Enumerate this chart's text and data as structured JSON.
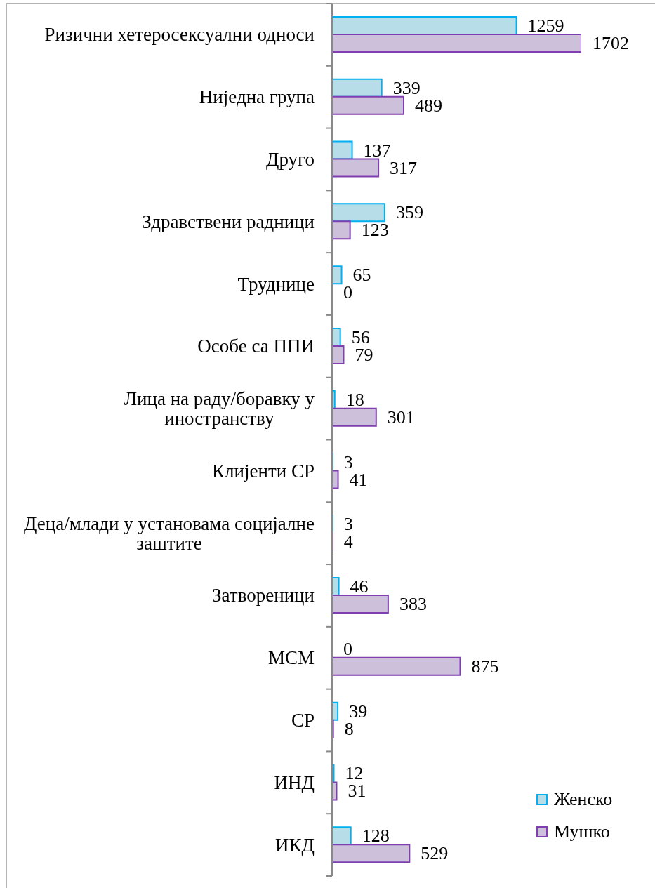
{
  "chart_data": {
    "type": "bar",
    "orientation": "horizontal",
    "categories": [
      "Ризични хетеросексуални односи",
      "Ниједна група",
      "Друго",
      "Здравствени радници",
      "Труднице",
      "Особе са ППИ",
      "Лица на раду/боравку у иностранству",
      "Клијенти СР",
      "Деца/млади у установама социјалне заштите",
      "Затвореници",
      "МСМ",
      "СР",
      "ИНД",
      "ИКД"
    ],
    "series": [
      {
        "name": "Женско",
        "color": "#b7dde8",
        "values": [
          1259,
          339,
          137,
          359,
          65,
          56,
          18,
          3,
          3,
          46,
          0,
          39,
          12,
          128
        ]
      },
      {
        "name": "Мушко",
        "color": "#ccc0da",
        "values": [
          1702,
          489,
          317,
          123,
          0,
          79,
          301,
          41,
          4,
          383,
          875,
          8,
          31,
          529
        ]
      }
    ],
    "data_labels": true,
    "legend": "bottom right"
  }
}
